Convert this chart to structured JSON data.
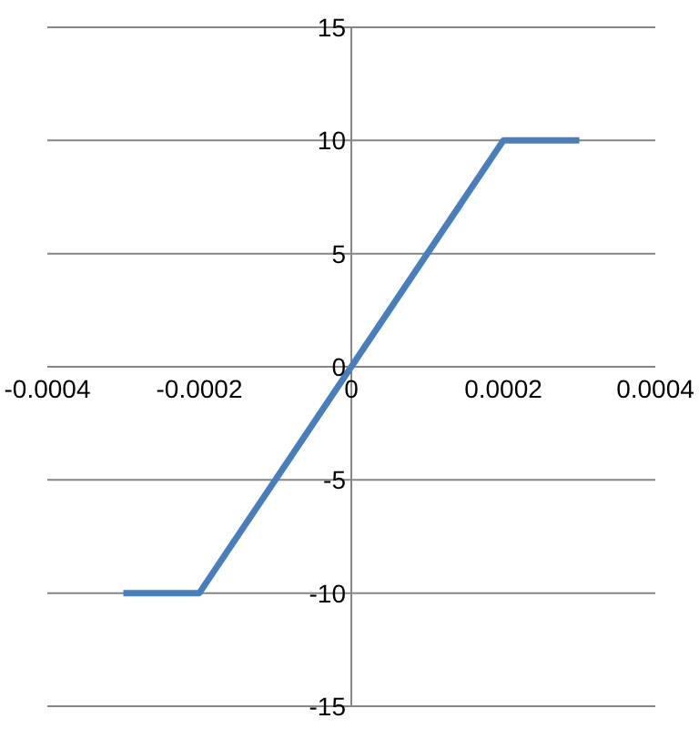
{
  "chart_data": {
    "type": "line",
    "x": [
      -0.0003,
      -0.0002,
      0.0002,
      0.0003
    ],
    "series": [
      {
        "color": "#4a7ebb",
        "values": [
          -10,
          -10,
          10,
          10
        ]
      }
    ],
    "xlim": [
      -0.0004,
      0.0004
    ],
    "xticks": [
      -0.0004,
      -0.0002,
      0,
      0.0002,
      0.0004
    ],
    "ylim": [
      -15,
      15
    ],
    "yticks": [
      -15,
      -10,
      -5,
      0,
      5,
      10,
      15
    ],
    "grid": "y",
    "marker": "none",
    "line_style": "solid"
  }
}
